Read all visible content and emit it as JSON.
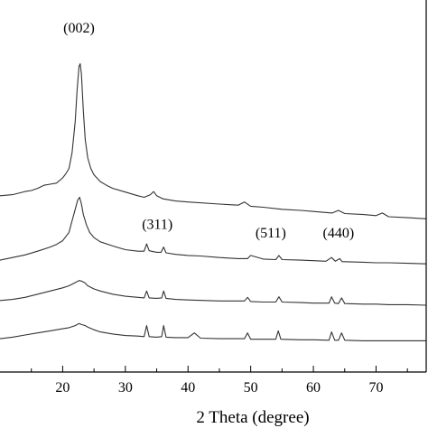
{
  "chart_data": {
    "type": "line",
    "xlabel": "2 Theta (degree)",
    "ylabel": "",
    "xlim": [
      10,
      78
    ],
    "x_ticks": [
      20,
      30,
      40,
      50,
      60,
      70
    ],
    "tick_labels": [
      "20",
      "30",
      "40",
      "50",
      "60",
      "70"
    ],
    "grid": false,
    "legend": "none",
    "line_color": "#333333",
    "series": [
      {
        "x": [
          10,
          12,
          14,
          15,
          16,
          17,
          18,
          19,
          20,
          20.5,
          21,
          21.5,
          22,
          22.3,
          22.6,
          22.8,
          23,
          23.3,
          23.6,
          24,
          24.5,
          25,
          26,
          27,
          28,
          30,
          32,
          33,
          34,
          34.5,
          35,
          36,
          38,
          40,
          45,
          48,
          49,
          50,
          52,
          55,
          58,
          60,
          63,
          64,
          65,
          68,
          70,
          71,
          72,
          75,
          78
        ],
        "y": [
          2.78,
          2.8,
          2.86,
          2.88,
          2.92,
          2.98,
          3.0,
          3.02,
          3.12,
          3.2,
          3.3,
          3.6,
          4.2,
          4.8,
          5.25,
          5.3,
          5.1,
          4.4,
          3.85,
          3.5,
          3.3,
          3.18,
          3.05,
          2.98,
          2.92,
          2.85,
          2.78,
          2.75,
          2.8,
          2.86,
          2.78,
          2.72,
          2.68,
          2.66,
          2.62,
          2.6,
          2.66,
          2.58,
          2.56,
          2.52,
          2.5,
          2.48,
          2.45,
          2.5,
          2.44,
          2.42,
          2.4,
          2.45,
          2.38,
          2.36,
          2.34
        ]
      },
      {
        "x": [
          10,
          12,
          14,
          16,
          18,
          19,
          20,
          21,
          21.5,
          22,
          22.4,
          22.7,
          23,
          23.3,
          23.8,
          24.3,
          25,
          26,
          28,
          30,
          32,
          33,
          33.4,
          33.8,
          35,
          35.7,
          36.1,
          36.5,
          38,
          40,
          42,
          45,
          48,
          49.5,
          50,
          52,
          54,
          54.5,
          55,
          58,
          60,
          62,
          62.9,
          63.5,
          64.2,
          64.6,
          65,
          68,
          70,
          72,
          75,
          78
        ],
        "y": [
          1.55,
          1.6,
          1.65,
          1.72,
          1.8,
          1.85,
          1.92,
          2.08,
          2.3,
          2.52,
          2.7,
          2.75,
          2.62,
          2.42,
          2.22,
          2.08,
          1.98,
          1.9,
          1.82,
          1.75,
          1.72,
          1.72,
          1.86,
          1.73,
          1.7,
          1.7,
          1.8,
          1.69,
          1.66,
          1.64,
          1.63,
          1.6,
          1.58,
          1.58,
          1.64,
          1.57,
          1.56,
          1.64,
          1.56,
          1.55,
          1.54,
          1.53,
          1.6,
          1.53,
          1.58,
          1.52,
          1.52,
          1.51,
          1.5,
          1.5,
          1.49,
          1.48
        ]
      },
      {
        "x": [
          10,
          12,
          14,
          16,
          18,
          20,
          21,
          22,
          22.6,
          23,
          23.5,
          24,
          25,
          26,
          28,
          30,
          32,
          33,
          33.4,
          33.8,
          35,
          35.8,
          36.1,
          36.5,
          38,
          40,
          45,
          49,
          49.5,
          50,
          52,
          54,
          54.5,
          55,
          58,
          60,
          62.5,
          62.9,
          63.4,
          64,
          64.5,
          65,
          68,
          70,
          72,
          75,
          78
        ],
        "y": [
          0.78,
          0.8,
          0.84,
          0.9,
          0.96,
          1.02,
          1.06,
          1.12,
          1.16,
          1.15,
          1.12,
          1.06,
          1.0,
          0.96,
          0.9,
          0.86,
          0.84,
          0.83,
          0.96,
          0.83,
          0.82,
          0.83,
          0.96,
          0.82,
          0.8,
          0.79,
          0.77,
          0.77,
          0.84,
          0.76,
          0.75,
          0.75,
          0.85,
          0.75,
          0.74,
          0.73,
          0.73,
          0.85,
          0.73,
          0.72,
          0.83,
          0.72,
          0.71,
          0.71,
          0.7,
          0.7,
          0.69
        ]
      },
      {
        "x": [
          10,
          12,
          14,
          16,
          18,
          20,
          21,
          22,
          22.6,
          23,
          23.6,
          24,
          25,
          26,
          28,
          30,
          32,
          33,
          33.4,
          33.8,
          35,
          35.8,
          36.1,
          36.5,
          38,
          40,
          41,
          42,
          45,
          49,
          49.5,
          50,
          52,
          54,
          54.4,
          54.8,
          58,
          60,
          62.5,
          62.9,
          63.4,
          64,
          64.5,
          65,
          68,
          70,
          72,
          75,
          78
        ],
        "y": [
          0.05,
          0.08,
          0.12,
          0.16,
          0.2,
          0.24,
          0.26,
          0.3,
          0.34,
          0.32,
          0.3,
          0.27,
          0.22,
          0.18,
          0.14,
          0.11,
          0.1,
          0.09,
          0.3,
          0.09,
          0.08,
          0.09,
          0.3,
          0.08,
          0.07,
          0.07,
          0.16,
          0.06,
          0.05,
          0.05,
          0.16,
          0.04,
          0.04,
          0.04,
          0.2,
          0.04,
          0.03,
          0.03,
          0.02,
          0.18,
          0.02,
          0.02,
          0.16,
          0.02,
          0.01,
          0.01,
          0.01,
          0.01,
          0.01
        ]
      }
    ],
    "annotations": [
      {
        "text": "(002)",
        "x": 22.6,
        "y": 5.9
      },
      {
        "text": "(311)",
        "x": 35.1,
        "y": 2.15
      },
      {
        "text": "(511)",
        "x": 53.2,
        "y": 1.98
      },
      {
        "text": "(440)",
        "x": 64.0,
        "y": 1.98
      }
    ]
  }
}
